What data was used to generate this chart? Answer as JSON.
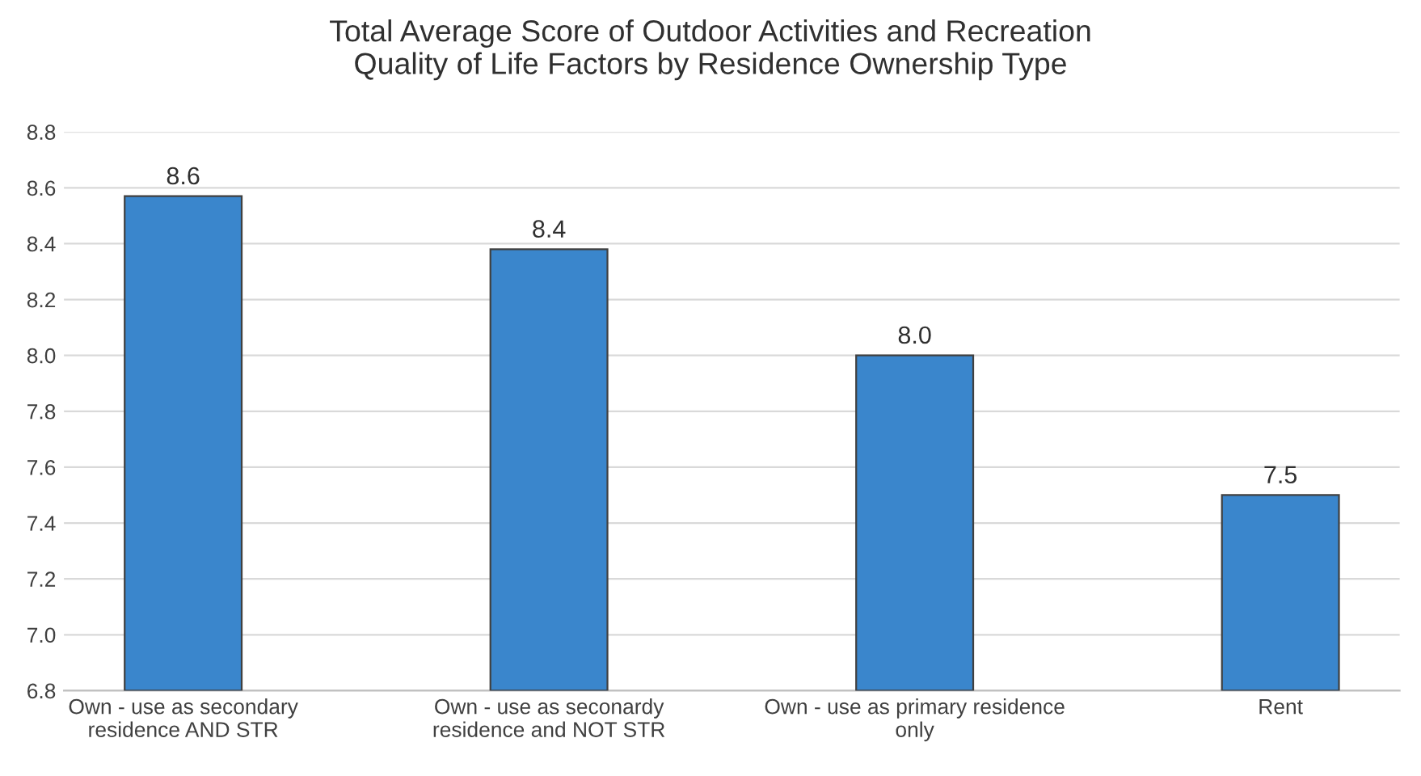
{
  "chart_data": {
    "type": "bar",
    "title": "Total Average Score of Outdoor Activities and Recreation\nQuality of Life Factors by Residence Ownership Type",
    "categories": [
      "Own - use as secondary\nresidence AND STR",
      "Own - use as seconardy\nresidence and NOT STR",
      "Own - use as primary residence\nonly",
      "Rent"
    ],
    "values": [
      8.57,
      8.38,
      8.0,
      7.5
    ],
    "value_labels": [
      "8.6",
      "8.4",
      "8.0",
      "7.5"
    ],
    "color": "#3a86cc",
    "ylim": [
      6.8,
      8.8
    ],
    "yticks": [
      "6.8",
      "7.0",
      "7.2",
      "7.4",
      "7.6",
      "7.8",
      "8.0",
      "8.2",
      "8.4",
      "8.6",
      "8.8"
    ],
    "grid": "y"
  }
}
